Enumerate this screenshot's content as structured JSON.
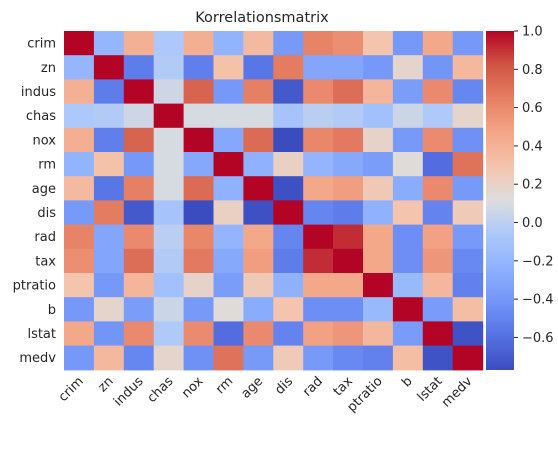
{
  "chart_data": {
    "type": "heatmap",
    "title": "Korrelationsmatrix",
    "variables": [
      "crim",
      "zn",
      "indus",
      "chas",
      "nox",
      "rm",
      "age",
      "dis",
      "rad",
      "tax",
      "ptratio",
      "b",
      "lstat",
      "medv"
    ],
    "matrix": [
      [
        1.0,
        -0.2,
        0.41,
        -0.06,
        0.42,
        -0.22,
        0.35,
        -0.38,
        0.63,
        0.58,
        0.29,
        -0.39,
        0.46,
        -0.39
      ],
      [
        -0.2,
        1.0,
        -0.53,
        -0.04,
        -0.52,
        0.31,
        -0.57,
        0.66,
        -0.31,
        -0.31,
        -0.39,
        0.18,
        -0.41,
        0.36
      ],
      [
        0.41,
        -0.53,
        1.0,
        0.06,
        0.76,
        -0.39,
        0.64,
        -0.71,
        0.6,
        0.72,
        0.38,
        -0.36,
        0.6,
        -0.48
      ],
      [
        -0.06,
        -0.04,
        0.06,
        1.0,
        0.09,
        0.09,
        0.09,
        -0.1,
        -0.01,
        -0.04,
        -0.12,
        0.05,
        -0.05,
        0.18
      ],
      [
        0.42,
        -0.52,
        0.76,
        0.09,
        1.0,
        -0.3,
        0.73,
        -0.77,
        0.61,
        0.67,
        0.19,
        -0.38,
        0.59,
        -0.43
      ],
      [
        -0.22,
        0.31,
        -0.39,
        0.09,
        -0.3,
        1.0,
        -0.24,
        0.21,
        -0.21,
        -0.29,
        -0.36,
        0.13,
        -0.61,
        0.7
      ],
      [
        0.35,
        -0.57,
        0.64,
        0.09,
        0.73,
        -0.24,
        1.0,
        -0.75,
        0.46,
        0.51,
        0.26,
        -0.27,
        0.6,
        -0.38
      ],
      [
        -0.38,
        0.66,
        -0.71,
        -0.1,
        -0.77,
        0.21,
        -0.75,
        1.0,
        -0.49,
        -0.53,
        -0.23,
        0.29,
        -0.5,
        0.25
      ],
      [
        0.63,
        -0.31,
        0.6,
        -0.01,
        0.61,
        -0.21,
        0.46,
        -0.49,
        1.0,
        0.91,
        0.46,
        -0.44,
        0.49,
        -0.38
      ],
      [
        0.58,
        -0.31,
        0.72,
        -0.04,
        0.67,
        -0.29,
        0.51,
        -0.53,
        0.91,
        1.0,
        0.46,
        -0.44,
        0.54,
        -0.47
      ],
      [
        0.29,
        -0.39,
        0.38,
        -0.12,
        0.19,
        -0.36,
        0.26,
        -0.23,
        0.46,
        0.46,
        1.0,
        -0.18,
        0.37,
        -0.51
      ],
      [
        -0.39,
        0.18,
        -0.36,
        0.05,
        -0.38,
        0.13,
        -0.27,
        0.29,
        -0.44,
        -0.44,
        -0.18,
        1.0,
        -0.37,
        0.33
      ],
      [
        0.46,
        -0.41,
        0.6,
        -0.05,
        0.59,
        -0.61,
        0.6,
        -0.5,
        0.49,
        0.54,
        0.37,
        -0.37,
        1.0,
        -0.74
      ],
      [
        -0.39,
        0.36,
        -0.48,
        0.18,
        -0.43,
        0.7,
        -0.38,
        0.25,
        -0.38,
        -0.47,
        -0.51,
        0.33,
        -0.74,
        1.0
      ]
    ],
    "colorbar": {
      "colormap": "coolwarm",
      "vmin": -0.77,
      "vmax": 1.0,
      "ticks": [
        "1.0",
        "0.8",
        "0.6",
        "0.4",
        "0.2",
        "0.0",
        "−0.2",
        "−0.4",
        "−0.6"
      ],
      "tick_values": [
        1.0,
        0.8,
        0.6,
        0.4,
        0.2,
        0.0,
        -0.2,
        -0.4,
        -0.6
      ]
    },
    "grid": false,
    "legend": "colorbar-right"
  }
}
